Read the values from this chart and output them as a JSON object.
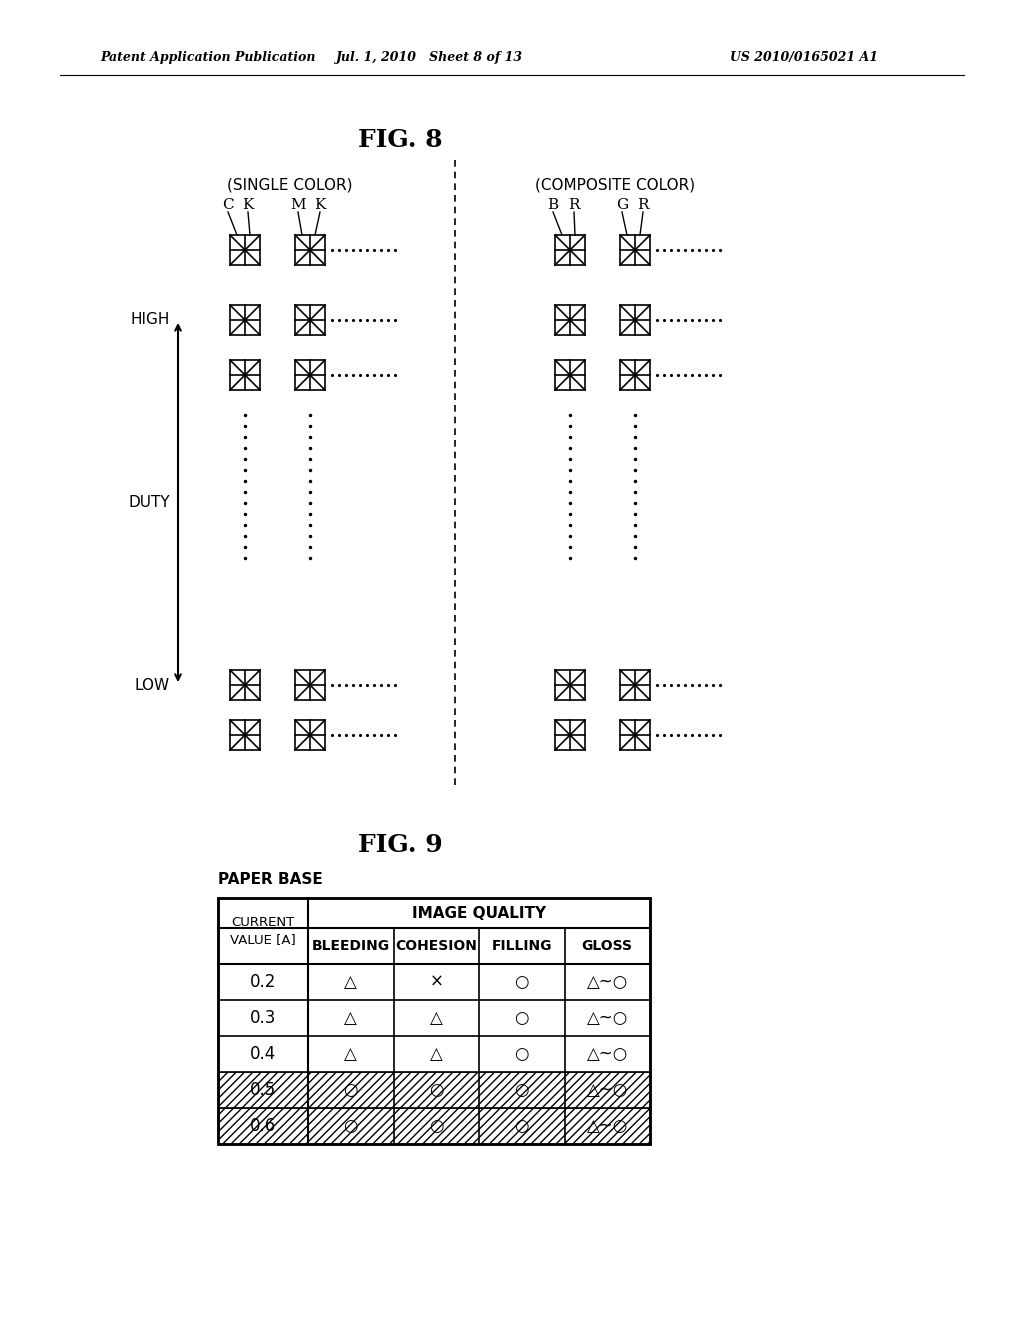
{
  "fig8_title": "FIG. 8",
  "fig9_title": "FIG. 9",
  "header_text_left": "Patent Application Publication",
  "header_text_mid": "Jul. 1, 2010   Sheet 8 of 13",
  "header_text_right": "US 2010/0165021 A1",
  "single_color_label": "(SINGLE COLOR)",
  "composite_color_label": "(COMPOSITE COLOR)",
  "duty_label": "DUTY",
  "high_label": "HIGH",
  "low_label": "LOW",
  "paper_base_label": "PAPER BASE",
  "table_header2": "IMAGE QUALITY",
  "table_sub_headers": [
    "BLEEDING",
    "COHESION",
    "FILLING",
    "GLOSS"
  ],
  "table_rows": [
    [
      "0.2",
      "△",
      "×",
      "○",
      "△~○"
    ],
    [
      "0.3",
      "△",
      "△",
      "○",
      "△~○"
    ],
    [
      "0.4",
      "△",
      "△",
      "○",
      "△~○"
    ],
    [
      "0.5",
      "○",
      "○",
      "○",
      "△~○"
    ],
    [
      "0.6",
      "○",
      "○",
      "○",
      "△~○"
    ]
  ],
  "hatched_rows": [
    3,
    4
  ],
  "background_color": "#ffffff"
}
